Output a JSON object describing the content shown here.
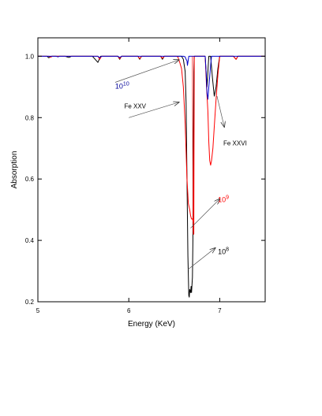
{
  "chart_data": {
    "type": "line",
    "title": "",
    "xlabel": "Energy (KeV)",
    "ylabel": "Absorption",
    "xlim": [
      5,
      7.5
    ],
    "ylim": [
      0.2,
      1.06
    ],
    "xticks": [
      5,
      6,
      7
    ],
    "xtick_labels": [
      "5",
      "6",
      "7"
    ],
    "yticks": [
      0.2,
      0.4,
      0.6,
      0.8,
      1.0
    ],
    "ytick_labels": [
      "0.2",
      "0.4",
      "0.6",
      "0.8",
      "1.0"
    ],
    "grid": false,
    "legend": "none",
    "series": [
      {
        "color": "#000000",
        "points": [
          [
            5.0,
            1.0
          ],
          [
            5.1,
            1.0
          ],
          [
            5.12,
            0.995
          ],
          [
            5.15,
            1.0
          ],
          [
            5.3,
            1.0
          ],
          [
            5.34,
            0.996
          ],
          [
            5.37,
            1.0
          ],
          [
            5.6,
            1.0
          ],
          [
            5.63,
            0.99
          ],
          [
            5.66,
            0.98
          ],
          [
            5.69,
            1.0
          ],
          [
            5.88,
            1.0
          ],
          [
            5.9,
            0.99
          ],
          [
            5.92,
            1.0
          ],
          [
            6.1,
            1.0
          ],
          [
            6.12,
            0.99
          ],
          [
            6.14,
            1.0
          ],
          [
            6.35,
            1.0
          ],
          [
            6.37,
            0.99
          ],
          [
            6.39,
            1.0
          ],
          [
            6.5,
            1.0
          ],
          [
            6.58,
            1.0
          ],
          [
            6.6,
            0.99
          ],
          [
            6.62,
            0.95
          ],
          [
            6.63,
            0.85
          ],
          [
            6.64,
            0.6
          ],
          [
            6.65,
            0.35
          ],
          [
            6.66,
            0.22
          ],
          [
            6.665,
            0.215
          ],
          [
            6.67,
            0.24
          ],
          [
            6.68,
            0.23
          ],
          [
            6.685,
            0.25
          ],
          [
            6.69,
            0.23
          ],
          [
            6.7,
            0.28
          ],
          [
            6.705,
            0.4
          ],
          [
            6.71,
            0.7
          ],
          [
            6.715,
            0.95
          ],
          [
            6.72,
            1.0
          ],
          [
            6.8,
            1.0
          ],
          [
            6.84,
            1.0
          ],
          [
            6.85,
            0.95
          ],
          [
            6.86,
            0.9
          ],
          [
            6.87,
            0.95
          ],
          [
            6.88,
            1.0
          ],
          [
            6.9,
            1.0
          ],
          [
            6.92,
            0.93
          ],
          [
            6.94,
            0.87
          ],
          [
            6.96,
            0.9
          ],
          [
            6.98,
            0.96
          ],
          [
            7.0,
            1.0
          ],
          [
            7.15,
            1.0
          ],
          [
            7.18,
            0.99
          ],
          [
            7.2,
            1.0
          ],
          [
            7.5,
            1.0
          ]
        ]
      },
      {
        "color": "#ff0000",
        "points": [
          [
            5.0,
            1.0
          ],
          [
            5.12,
            1.0
          ],
          [
            5.14,
            0.997
          ],
          [
            5.16,
            1.0
          ],
          [
            5.66,
            1.0
          ],
          [
            5.68,
            0.99
          ],
          [
            5.7,
            1.0
          ],
          [
            5.88,
            1.0
          ],
          [
            5.9,
            0.992
          ],
          [
            5.92,
            1.0
          ],
          [
            6.1,
            1.0
          ],
          [
            6.12,
            0.992
          ],
          [
            6.14,
            1.0
          ],
          [
            6.35,
            1.0
          ],
          [
            6.37,
            0.993
          ],
          [
            6.39,
            1.0
          ],
          [
            6.52,
            1.0
          ],
          [
            6.54,
            0.998
          ],
          [
            6.56,
            0.98
          ],
          [
            6.58,
            0.96
          ],
          [
            6.6,
            0.9
          ],
          [
            6.62,
            0.78
          ],
          [
            6.64,
            0.6
          ],
          [
            6.655,
            0.52
          ],
          [
            6.67,
            0.5
          ],
          [
            6.68,
            0.48
          ],
          [
            6.69,
            0.47
          ],
          [
            6.7,
            0.47
          ],
          [
            6.71,
            0.46
          ],
          [
            6.715,
            0.42
          ],
          [
            6.72,
            1.0
          ],
          [
            6.8,
            1.0
          ],
          [
            6.84,
            1.0
          ],
          [
            6.855,
            0.9
          ],
          [
            6.87,
            0.82
          ],
          [
            6.88,
            0.72
          ],
          [
            6.89,
            0.66
          ],
          [
            6.9,
            0.645
          ],
          [
            6.91,
            0.66
          ],
          [
            6.925,
            0.7
          ],
          [
            6.94,
            0.77
          ],
          [
            6.96,
            0.86
          ],
          [
            6.98,
            0.94
          ],
          [
            7.0,
            1.0
          ],
          [
            7.15,
            1.0
          ],
          [
            7.18,
            0.99
          ],
          [
            7.2,
            1.0
          ],
          [
            7.5,
            1.0
          ]
        ]
      },
      {
        "color": "#0000cc",
        "points": [
          [
            5.0,
            1.0
          ],
          [
            5.2,
            1.0
          ],
          [
            5.22,
            0.998
          ],
          [
            5.24,
            1.0
          ],
          [
            5.66,
            1.0
          ],
          [
            5.68,
            0.995
          ],
          [
            5.7,
            1.0
          ],
          [
            5.88,
            1.0
          ],
          [
            5.9,
            0.996
          ],
          [
            5.92,
            1.0
          ],
          [
            6.6,
            1.0
          ],
          [
            6.62,
            0.998
          ],
          [
            6.63,
            0.99
          ],
          [
            6.64,
            0.985
          ],
          [
            6.645,
            0.97
          ],
          [
            6.65,
            0.98
          ],
          [
            6.66,
            1.0
          ],
          [
            6.84,
            1.0
          ],
          [
            6.85,
            0.95
          ],
          [
            6.86,
            0.88
          ],
          [
            6.87,
            0.86
          ],
          [
            6.88,
            0.9
          ],
          [
            6.9,
            0.97
          ],
          [
            6.91,
            1.0
          ],
          [
            7.5,
            1.0
          ]
        ]
      },
      {
        "color": "#ff0000",
        "points": [
          [
            6.7,
            1.0
          ],
          [
            6.702,
            0.8
          ],
          [
            6.705,
            0.6
          ],
          [
            6.708,
            0.43
          ],
          [
            6.71,
            0.42
          ],
          [
            6.712,
            0.45
          ],
          [
            6.715,
            0.7
          ],
          [
            6.72,
            0.98
          ]
        ]
      }
    ],
    "annotations": [
      {
        "base": "10",
        "exponent": "10",
        "color": "#000099",
        "text_x": 5.85,
        "text_y": 0.895,
        "arrow_from": [
          5.85,
          0.915
        ],
        "arrow_to": [
          6.55,
          0.988
        ]
      },
      {
        "text": "Fe XXV",
        "color": "#000000",
        "text_x": 5.95,
        "text_y": 0.83,
        "arrow_from": [
          6.0,
          0.8
        ],
        "arrow_to": [
          6.55,
          0.85
        ]
      },
      {
        "text": "Fe XXVI",
        "color": "#000000",
        "text_x": 7.04,
        "text_y": 0.71,
        "arrow_from": [
          6.97,
          0.87
        ],
        "arrow_to": [
          7.05,
          0.77
        ]
      },
      {
        "base": "10",
        "exponent": "9",
        "color": "#ff0000",
        "text_x": 6.98,
        "text_y": 0.525,
        "arrow_from": [
          6.68,
          0.44
        ],
        "arrow_to": [
          7.0,
          0.535
        ]
      },
      {
        "base": "10",
        "exponent": "8",
        "color": "#000000",
        "text_x": 6.98,
        "text_y": 0.355,
        "arrow_from": [
          6.65,
          0.305
        ],
        "arrow_to": [
          6.95,
          0.375
        ]
      }
    ]
  }
}
